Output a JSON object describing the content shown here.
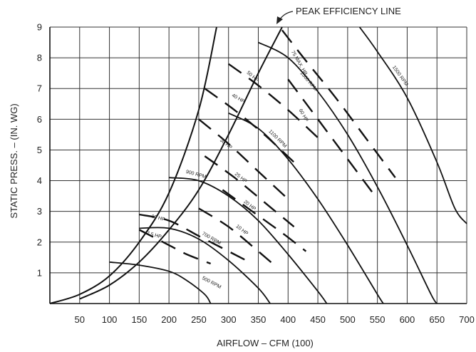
{
  "chart_data": {
    "type": "line",
    "title": "",
    "xlabel": "AIRFLOW – CFM (100)",
    "ylabel": "STATIC PRESS. – (IN. WG)",
    "xlim": [
      0,
      700
    ],
    "ylim": [
      0,
      9
    ],
    "x_ticks": [
      50,
      100,
      150,
      200,
      250,
      300,
      350,
      400,
      450,
      500,
      550,
      600,
      650,
      700
    ],
    "y_ticks": [
      1,
      2,
      3,
      4,
      5,
      6,
      7,
      8,
      9
    ],
    "grid": true,
    "annotation": "PEAK EFFICIENCY LINE",
    "boundary_curves": [
      {
        "name": "left system curve",
        "points": [
          [
            0,
            0
          ],
          [
            50,
            0.3
          ],
          [
            100,
            0.9
          ],
          [
            150,
            2.0
          ],
          [
            200,
            3.6
          ],
          [
            250,
            6.3
          ],
          [
            280,
            9.0
          ]
        ]
      },
      {
        "name": "peak efficiency line",
        "points": [
          [
            50,
            0.15
          ],
          [
            100,
            0.6
          ],
          [
            150,
            1.35
          ],
          [
            200,
            2.4
          ],
          [
            250,
            3.7
          ],
          [
            300,
            5.5
          ],
          [
            350,
            7.5
          ],
          [
            390,
            9.0
          ]
        ]
      }
    ],
    "rpm_curves": [
      {
        "label": "500 RPM",
        "label_at": [
          255,
          0.8
        ],
        "label_angle": 28,
        "points": [
          [
            100,
            1.35
          ],
          [
            150,
            1.25
          ],
          [
            200,
            1.05
          ],
          [
            230,
            0.75
          ],
          [
            260,
            0.3
          ],
          [
            270,
            0
          ]
        ]
      },
      {
        "label": "700 RPM",
        "label_at": [
          255,
          2.25
        ],
        "label_angle": 30,
        "points": [
          [
            150,
            2.45
          ],
          [
            200,
            2.45
          ],
          [
            250,
            2.1
          ],
          [
            300,
            1.4
          ],
          [
            350,
            0.5
          ],
          [
            370,
            0
          ]
        ]
      },
      {
        "label": "900 RPM",
        "label_at": [
          228,
          4.25
        ],
        "label_angle": 15,
        "points": [
          [
            200,
            4.1
          ],
          [
            250,
            4.0
          ],
          [
            300,
            3.5
          ],
          [
            350,
            2.7
          ],
          [
            400,
            1.6
          ],
          [
            450,
            0.4
          ],
          [
            465,
            0
          ]
        ]
      },
      {
        "label": "1100 RPM",
        "label_at": [
          367,
          5.6
        ],
        "label_angle": 45,
        "points": [
          [
            300,
            6.2
          ],
          [
            350,
            5.7
          ],
          [
            400,
            4.7
          ],
          [
            450,
            3.4
          ],
          [
            500,
            1.9
          ],
          [
            550,
            0.3
          ],
          [
            560,
            0
          ]
        ]
      },
      {
        "label": "1300 RPM",
        "label_at": [
          420,
          7.5
        ],
        "label_angle": 50,
        "points": [
          [
            350,
            8.5
          ],
          [
            400,
            8.0
          ],
          [
            450,
            6.9
          ],
          [
            500,
            5.5
          ],
          [
            550,
            3.8
          ],
          [
            600,
            1.9
          ],
          [
            640,
            0.3
          ],
          [
            650,
            0
          ]
        ]
      },
      {
        "label": "1500 RPM",
        "label_at": [
          575,
          7.7
        ],
        "label_angle": 55,
        "points": [
          [
            520,
            9.0
          ],
          [
            550,
            8.2
          ],
          [
            600,
            6.7
          ],
          [
            650,
            4.6
          ],
          [
            680,
            3.1
          ],
          [
            700,
            2.6
          ]
        ]
      }
    ],
    "hp_curves": [
      {
        "label": "7.5 HP",
        "label_at": [
          162,
          2.25
        ],
        "label_angle": 15,
        "points": [
          [
            150,
            2.4
          ],
          [
            200,
            1.9
          ],
          [
            230,
            1.6
          ],
          [
            270,
            1.3
          ]
        ]
      },
      {
        "label": "10 HP",
        "label_at": [
          170,
          2.8
        ],
        "label_angle": 15,
        "points": [
          [
            150,
            2.9
          ],
          [
            200,
            2.7
          ],
          [
            250,
            2.2
          ],
          [
            300,
            1.7
          ],
          [
            330,
            1.4
          ]
        ]
      },
      {
        "label": "10 HP",
        "label_at": [
          312,
          2.5
        ],
        "label_angle": 38,
        "points": [
          [
            250,
            3.1
          ],
          [
            300,
            2.5
          ],
          [
            350,
            1.7
          ],
          [
            380,
            1.2
          ]
        ]
      },
      {
        "label": "20 HP",
        "label_at": [
          325,
          3.3
        ],
        "label_angle": 38,
        "points": [
          [
            290,
            3.7
          ],
          [
            340,
            3.0
          ],
          [
            390,
            2.3
          ],
          [
            430,
            1.7
          ]
        ]
      },
      {
        "label": "25 HP",
        "label_at": [
          310,
          4.2
        ],
        "label_angle": 38,
        "points": [
          [
            260,
            4.8
          ],
          [
            310,
            4.1
          ],
          [
            360,
            3.3
          ],
          [
            410,
            2.5
          ]
        ]
      },
      {
        "label": "30 HP",
        "label_at": [
          285,
          5.3
        ],
        "label_angle": 38,
        "points": [
          [
            250,
            6.0
          ],
          [
            300,
            5.2
          ],
          [
            350,
            4.3
          ],
          [
            400,
            3.4
          ]
        ]
      },
      {
        "label": "40 HP",
        "label_at": [
          305,
          6.75
        ],
        "label_angle": 30,
        "points": [
          [
            260,
            7.0
          ],
          [
            310,
            6.3
          ],
          [
            360,
            5.5
          ],
          [
            410,
            4.6
          ]
        ]
      },
      {
        "label": "50 HP",
        "label_at": [
          330,
          7.5
        ],
        "label_angle": 40,
        "points": [
          [
            300,
            7.8
          ],
          [
            350,
            7.1
          ],
          [
            400,
            6.3
          ],
          [
            450,
            5.4
          ]
        ]
      },
      {
        "label": "60 HP",
        "label_at": [
          418,
          6.3
        ],
        "label_angle": 60,
        "points": [
          [
            400,
            7.3
          ],
          [
            450,
            6.0
          ],
          [
            500,
            4.7
          ],
          [
            550,
            3.4
          ]
        ]
      },
      {
        "label": "75 MAX. HP",
        "label_at": [
          405,
          8.2
        ],
        "label_angle": 60,
        "points": [
          [
            390,
            8.9
          ],
          [
            430,
            7.9
          ],
          [
            480,
            6.7
          ],
          [
            530,
            5.4
          ],
          [
            580,
            4.1
          ]
        ]
      }
    ]
  }
}
